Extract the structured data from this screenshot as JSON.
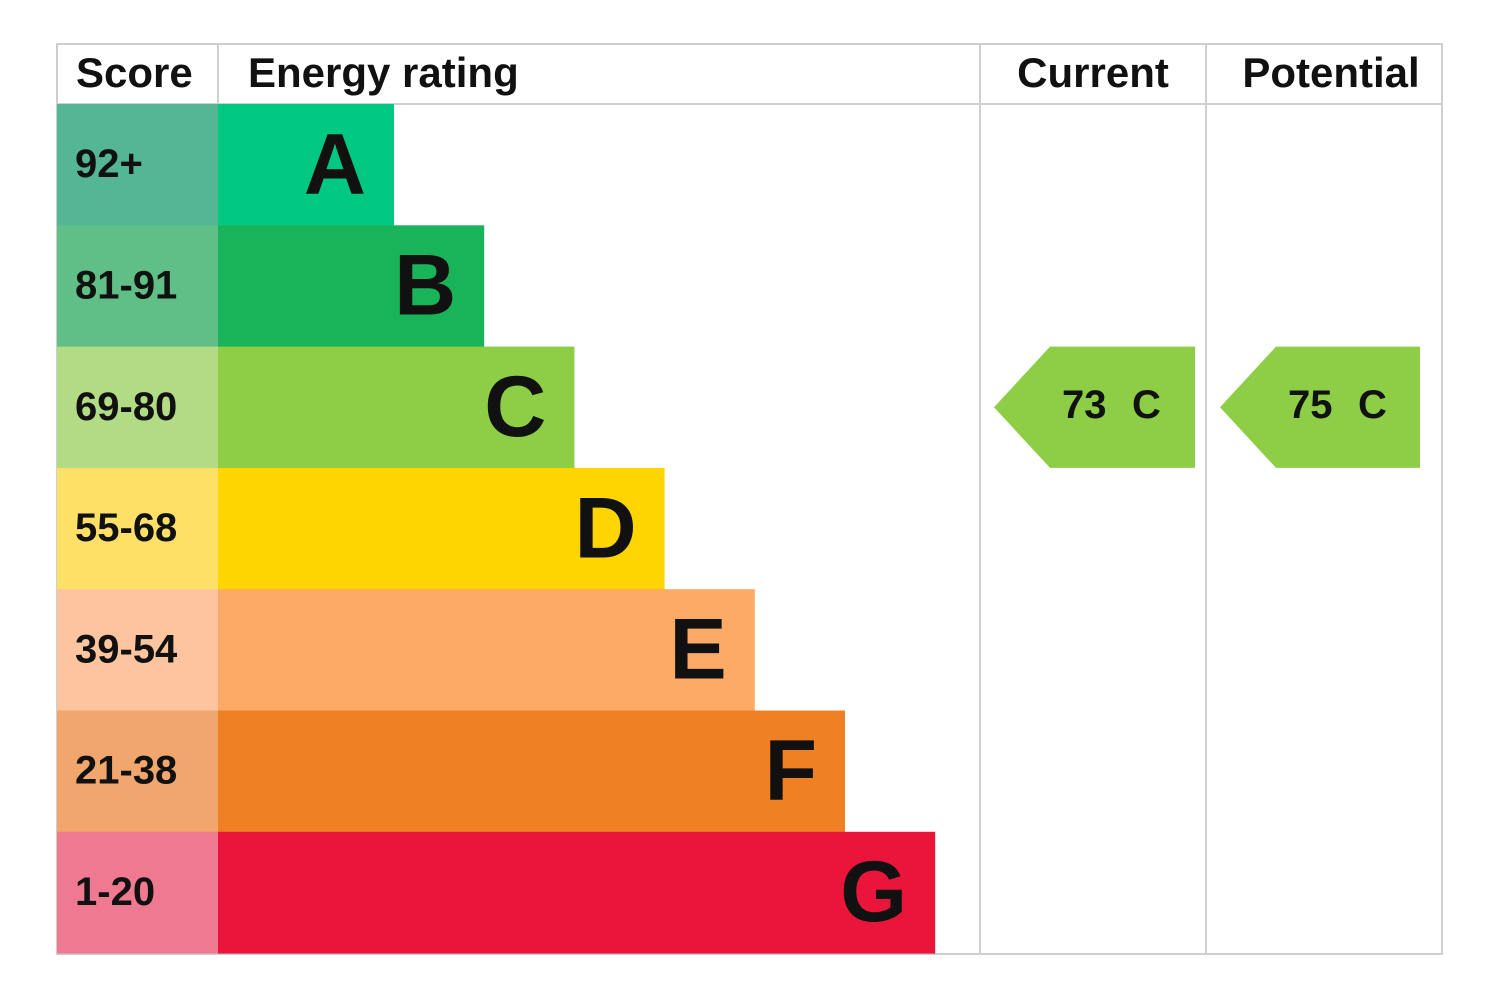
{
  "header": {
    "score": "Score",
    "rating": "Energy rating",
    "current": "Current",
    "potential": "Potential"
  },
  "bands": [
    {
      "score": "92+",
      "letter": "A",
      "score_color": "#55b695",
      "color": "#00c781"
    },
    {
      "score": "81-91",
      "letter": "B",
      "score_color": "#5fbf87",
      "color": "#19b459"
    },
    {
      "score": "69-80",
      "letter": "C",
      "score_color": "#b2db86",
      "color": "#8dce46"
    },
    {
      "score": "55-68",
      "letter": "D",
      "score_color": "#ffe066",
      "color": "#ffd500"
    },
    {
      "score": "39-54",
      "letter": "E",
      "score_color": "#fcc59f",
      "color": "#fcaa65"
    },
    {
      "score": "21-38",
      "letter": "F",
      "score_color": "#f1a66d",
      "color": "#ef8023"
    },
    {
      "score": "1-20",
      "letter": "G",
      "score_color": "#ef7990",
      "color": "#e9153b"
    }
  ],
  "current": {
    "value": 73,
    "letter": "C"
  },
  "potential": {
    "value": 75,
    "letter": "C"
  }
}
